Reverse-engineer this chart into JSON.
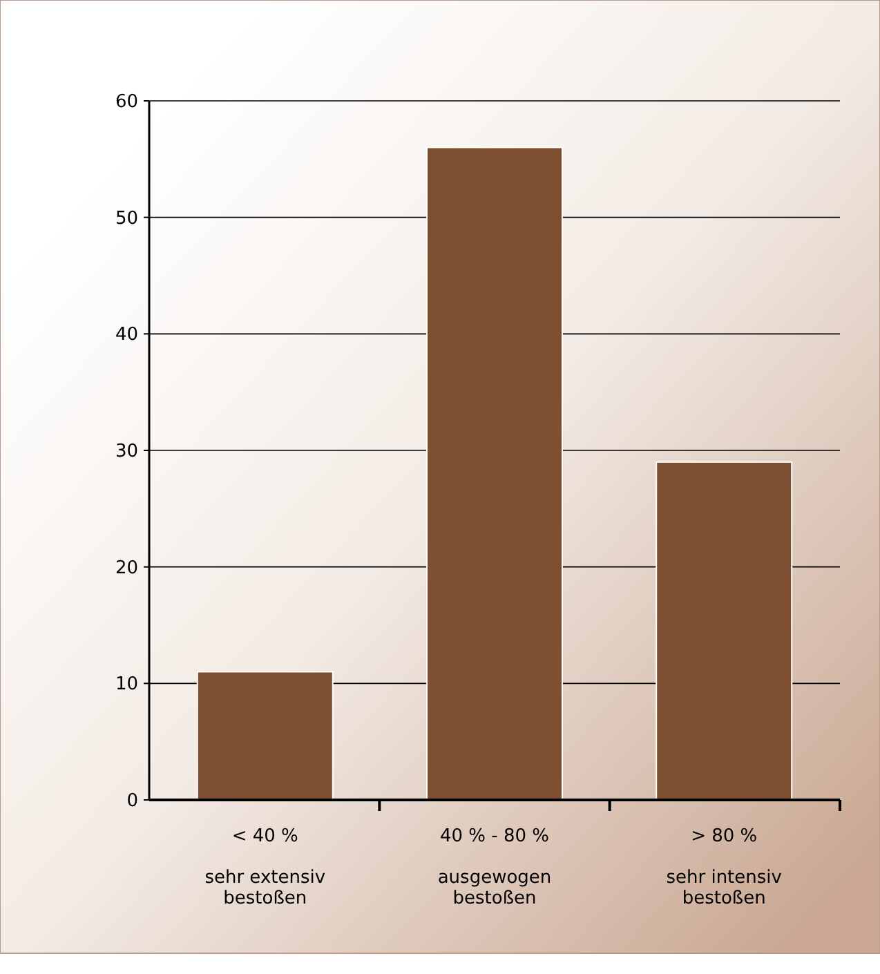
{
  "chart_data": {
    "type": "bar",
    "categories": [
      "< 40 %\n\nsehr extensiv\nbestoßen",
      "40 % - 80 %\n\nausgewogen\nbestoßen",
      "> 80 %\n\nsehr intensiv\nbestoßen"
    ],
    "values": [
      11,
      56,
      29
    ],
    "color": "#7d4e2f",
    "ylim": [
      0,
      60
    ],
    "yticks": [
      0,
      10,
      20,
      30,
      40,
      50,
      60
    ],
    "grid": "y"
  }
}
